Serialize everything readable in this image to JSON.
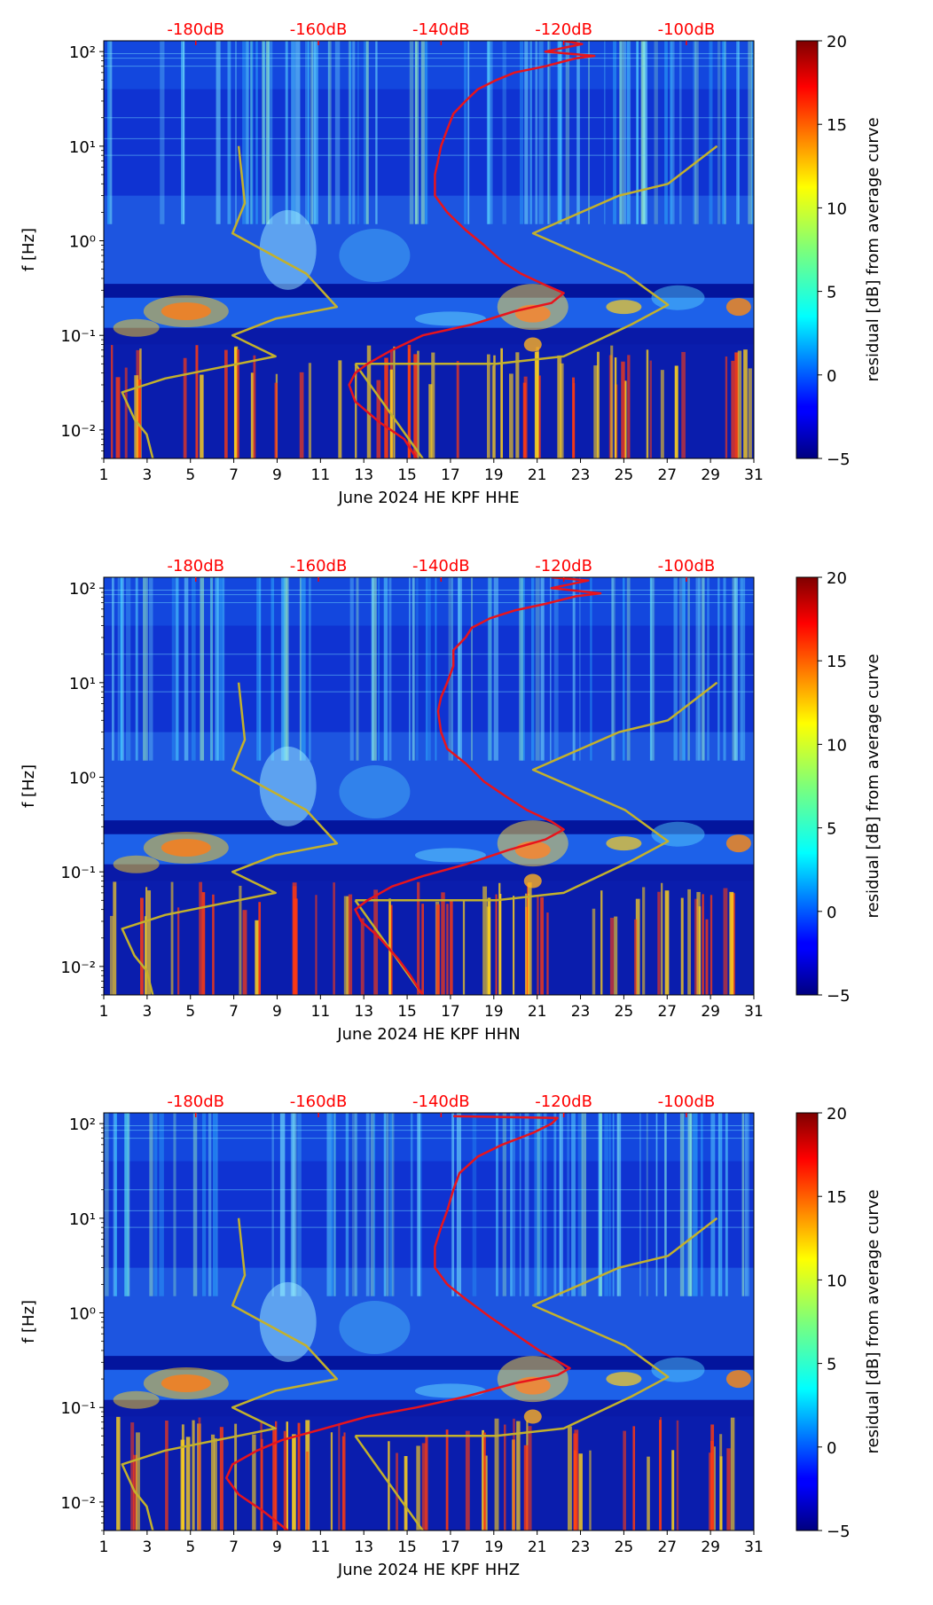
{
  "colors": {
    "red_curve": "#e8141c",
    "olive_curve": "#c3b12c",
    "db_label": "#ff0000"
  },
  "shared": {
    "ylabel": "f [Hz]",
    "colorbar_label": "residual [dB] from average curve",
    "colorbar_ticks": [
      "20",
      "15",
      "10",
      "5",
      "0",
      "−5"
    ],
    "colormap": "jet",
    "colorbar_range": [
      -5,
      20
    ],
    "x_ticks": [
      "1",
      "3",
      "5",
      "7",
      "9",
      "11",
      "13",
      "15",
      "17",
      "19",
      "21",
      "23",
      "25",
      "27",
      "29",
      "31"
    ],
    "x_range": [
      1,
      31
    ],
    "y_ticks": [
      "10²",
      "10¹",
      "10⁰",
      "10⁻¹",
      "10⁻²"
    ],
    "y_range_hz": [
      0.005,
      130
    ],
    "top_ticks": [
      "-180dB",
      "-160dB",
      "-140dB",
      "-120dB",
      "-100dB"
    ]
  },
  "chart_data": [
    {
      "type": "heatmap",
      "xlabel": "June 2024 HE KPF  HHE",
      "channel": "HHE",
      "red_curve": [
        [
          -120,
          130
        ],
        [
          -117,
          120
        ],
        [
          -123,
          100
        ],
        [
          -115,
          90
        ],
        [
          -118,
          85
        ],
        [
          -123,
          70
        ],
        [
          -128,
          60
        ],
        [
          -131,
          50
        ],
        [
          -134,
          40
        ],
        [
          -136,
          30
        ],
        [
          -138,
          22
        ],
        [
          -139,
          15
        ],
        [
          -140,
          10
        ],
        [
          -140.5,
          7
        ],
        [
          -141,
          5
        ],
        [
          -141,
          3
        ],
        [
          -139,
          2
        ],
        [
          -136,
          1.3
        ],
        [
          -133,
          0.9
        ],
        [
          -130,
          0.6
        ],
        [
          -127,
          0.45
        ],
        [
          -123,
          0.34
        ],
        [
          -120,
          0.28
        ],
        [
          -122,
          0.22
        ],
        [
          -128,
          0.18
        ],
        [
          -135,
          0.13
        ],
        [
          -143,
          0.1
        ],
        [
          -148,
          0.07
        ],
        [
          -152,
          0.05
        ],
        [
          -154,
          0.04
        ],
        [
          -155,
          0.03
        ],
        [
          -154,
          0.02
        ],
        [
          -150,
          0.012
        ],
        [
          -146,
          0.008
        ],
        [
          -144,
          0.005
        ]
      ],
      "olive_curve": [
        [
          -173,
          10
        ],
        [
          -172,
          2.5
        ],
        [
          -174,
          1.2
        ],
        [
          -162,
          0.45
        ],
        [
          -157,
          0.2
        ],
        [
          -167,
          0.15
        ],
        [
          -174,
          0.1
        ],
        [
          -171,
          0.08
        ],
        [
          -167,
          0.06
        ],
        [
          -185,
          0.035
        ],
        [
          -192,
          0.025
        ],
        [
          -190,
          0.013
        ],
        [
          -188,
          0.009
        ],
        [
          -187,
          0.005
        ]
      ],
      "olive_curve_2": [
        [
          -154,
          0.05
        ],
        [
          -131,
          0.05
        ],
        [
          -120,
          0.06
        ],
        [
          -109,
          0.13
        ],
        [
          -103,
          0.21
        ],
        [
          -110,
          0.45
        ],
        [
          -125,
          1.2
        ],
        [
          -111,
          3
        ],
        [
          -103,
          4
        ],
        [
          -95,
          10
        ]
      ],
      "olive_curve_3": [
        [
          -154,
          0.05
        ],
        [
          -143,
          0.005
        ]
      ]
    },
    {
      "type": "heatmap",
      "xlabel": "June 2024 HE KPF  HHN",
      "channel": "HHN",
      "red_curve": [
        [
          -122,
          130
        ],
        [
          -116,
          120
        ],
        [
          -122,
          100
        ],
        [
          -114,
          88
        ],
        [
          -118,
          82
        ],
        [
          -123,
          68
        ],
        [
          -128,
          58
        ],
        [
          -132,
          48
        ],
        [
          -135,
          38
        ],
        [
          -136,
          30
        ],
        [
          -138,
          22
        ],
        [
          -138,
          15
        ],
        [
          -139,
          10
        ],
        [
          -140,
          7
        ],
        [
          -140.5,
          5
        ],
        [
          -140,
          3
        ],
        [
          -139,
          2
        ],
        [
          -136,
          1.4
        ],
        [
          -133,
          0.9
        ],
        [
          -129,
          0.6
        ],
        [
          -126,
          0.45
        ],
        [
          -122,
          0.34
        ],
        [
          -120,
          0.28
        ],
        [
          -123,
          0.22
        ],
        [
          -129,
          0.17
        ],
        [
          -136,
          0.12
        ],
        [
          -143,
          0.09
        ],
        [
          -148,
          0.07
        ],
        [
          -152,
          0.05
        ],
        [
          -154,
          0.04
        ],
        [
          -153,
          0.03
        ],
        [
          -150,
          0.02
        ],
        [
          -147,
          0.012
        ],
        [
          -145,
          0.008
        ],
        [
          -143,
          0.005
        ]
      ],
      "olive_curve": [
        [
          -173,
          10
        ],
        [
          -172,
          2.5
        ],
        [
          -174,
          1.2
        ],
        [
          -162,
          0.45
        ],
        [
          -157,
          0.2
        ],
        [
          -167,
          0.15
        ],
        [
          -174,
          0.1
        ],
        [
          -171,
          0.08
        ],
        [
          -167,
          0.06
        ],
        [
          -185,
          0.035
        ],
        [
          -192,
          0.025
        ],
        [
          -190,
          0.013
        ],
        [
          -188,
          0.009
        ],
        [
          -187,
          0.005
        ]
      ],
      "olive_curve_2": [
        [
          -154,
          0.05
        ],
        [
          -131,
          0.05
        ],
        [
          -120,
          0.06
        ],
        [
          -109,
          0.13
        ],
        [
          -103,
          0.21
        ],
        [
          -110,
          0.45
        ],
        [
          -125,
          1.2
        ],
        [
          -111,
          3
        ],
        [
          -103,
          4
        ],
        [
          -95,
          10
        ]
      ],
      "olive_curve_3": [
        [
          -154,
          0.05
        ],
        [
          -143,
          0.005
        ]
      ]
    },
    {
      "type": "heatmap",
      "xlabel": "June 2024 HE KPF  HHZ",
      "channel": "HHZ",
      "red_curve": [
        [
          -138,
          120
        ],
        [
          -121,
          115
        ],
        [
          -122,
          100
        ],
        [
          -125,
          80
        ],
        [
          -130,
          60
        ],
        [
          -134,
          45
        ],
        [
          -137,
          30
        ],
        [
          -138,
          20
        ],
        [
          -139,
          12
        ],
        [
          -140,
          8
        ],
        [
          -141,
          5
        ],
        [
          -141,
          3
        ],
        [
          -139,
          2
        ],
        [
          -136,
          1.4
        ],
        [
          -132,
          0.9
        ],
        [
          -128,
          0.6
        ],
        [
          -124,
          0.4
        ],
        [
          -119,
          0.26
        ],
        [
          -121,
          0.22
        ],
        [
          -128,
          0.18
        ],
        [
          -136,
          0.13
        ],
        [
          -144,
          0.1
        ],
        [
          -152,
          0.08
        ],
        [
          -159,
          0.06
        ],
        [
          -166,
          0.045
        ],
        [
          -170,
          0.035
        ],
        [
          -174,
          0.025
        ],
        [
          -175,
          0.018
        ],
        [
          -173,
          0.012
        ],
        [
          -169,
          0.008
        ],
        [
          -165,
          0.005
        ]
      ],
      "olive_curve": [
        [
          -173,
          10
        ],
        [
          -172,
          2.5
        ],
        [
          -174,
          1.2
        ],
        [
          -162,
          0.45
        ],
        [
          -157,
          0.2
        ],
        [
          -167,
          0.15
        ],
        [
          -174,
          0.1
        ],
        [
          -171,
          0.08
        ],
        [
          -167,
          0.06
        ],
        [
          -185,
          0.035
        ],
        [
          -192,
          0.025
        ],
        [
          -190,
          0.013
        ],
        [
          -188,
          0.009
        ],
        [
          -187,
          0.005
        ]
      ],
      "olive_curve_2": [
        [
          -154,
          0.05
        ],
        [
          -131,
          0.05
        ],
        [
          -120,
          0.06
        ],
        [
          -109,
          0.13
        ],
        [
          -103,
          0.21
        ],
        [
          -110,
          0.45
        ],
        [
          -125,
          1.2
        ],
        [
          -111,
          3
        ],
        [
          -103,
          4
        ],
        [
          -95,
          10
        ]
      ],
      "olive_curve_3": [
        [
          -154,
          0.05
        ],
        [
          -143,
          0.005
        ]
      ]
    }
  ]
}
